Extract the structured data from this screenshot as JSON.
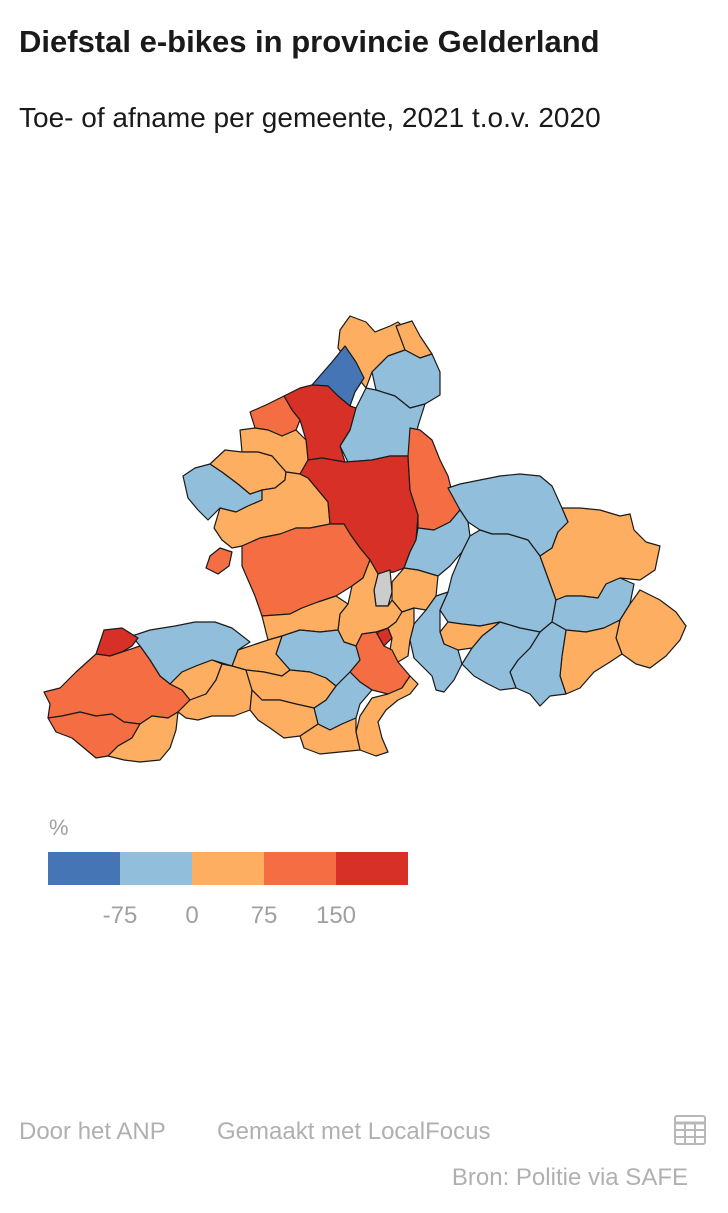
{
  "title": "Diefstal e-bikes in provincie Gelderland",
  "subtitle": "Toe- of afname per gemeente, 2021 t.o.v. 2020",
  "legend": {
    "unit": "%",
    "colors": [
      "#4575b4",
      "#91bfdb",
      "#fdae61",
      "#f46d43",
      "#d73027"
    ],
    "ticks": [
      "-75",
      "0",
      "75",
      "150"
    ]
  },
  "map_colors": {
    "strong_decrease": "#4575b4",
    "decrease": "#91bfdb",
    "increase": "#fdae61",
    "strong_increase": "#f46d43",
    "very_strong_increase": "#d73027",
    "no_data": "#cccccc"
  },
  "footer": {
    "credit": "Door het ANP",
    "made_with": "Gemaakt met LocalFocus",
    "source": "Bron: Politie via SAFE"
  },
  "icons": {
    "table": "table-icon"
  }
}
